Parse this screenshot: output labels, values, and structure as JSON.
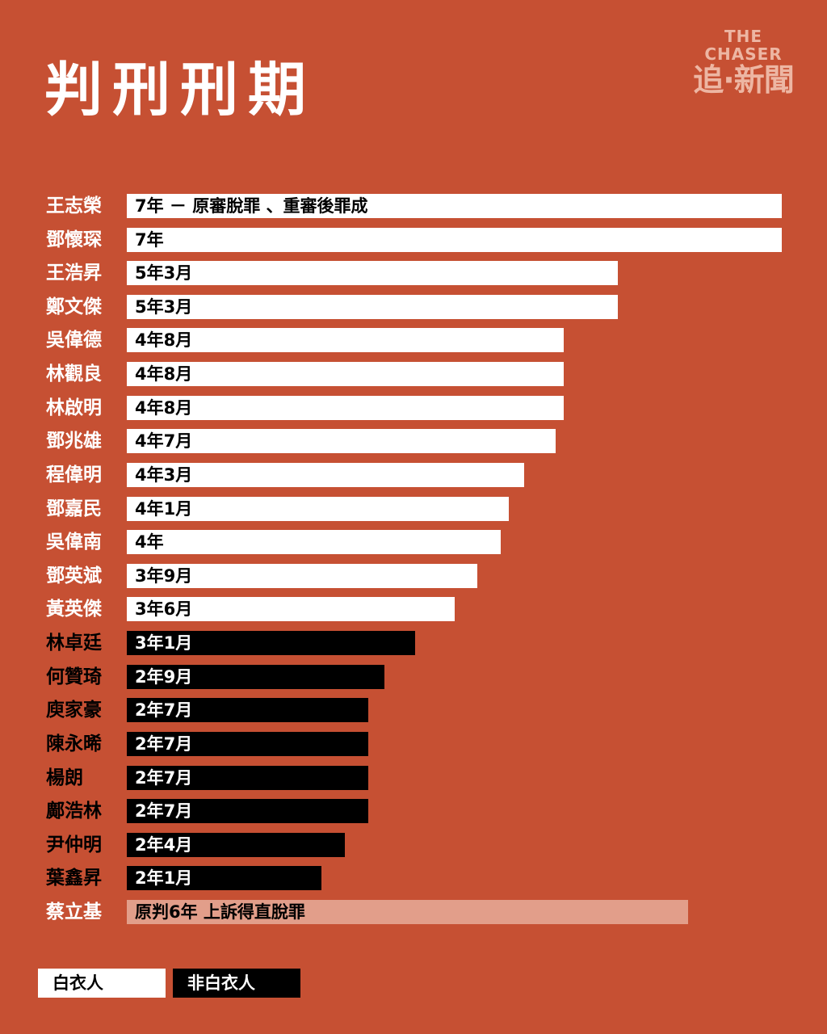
{
  "title": "判刑刑期",
  "logo": {
    "en": "THE CHASER",
    "zh": "追·新聞"
  },
  "colors": {
    "background": "#C65033",
    "white_clothed": "#FFFFFF",
    "non_white_clothed": "#000000",
    "acquitted": "#E29E8A",
    "logo": "#EDB6A3"
  },
  "legend": [
    {
      "label": "白衣人",
      "group": "white"
    },
    {
      "label": "非白衣人",
      "group": "black"
    }
  ],
  "chart_data": {
    "type": "bar",
    "orientation": "horizontal",
    "unit": "months",
    "title": "判刑刑期",
    "xlim": [
      0,
      84
    ],
    "grid": false,
    "legend_position": "bottom-left",
    "rows": [
      {
        "name": "王志榮",
        "months": 84,
        "label": "7年 － 原審脫罪 、重審後罪成",
        "group": "white"
      },
      {
        "name": "鄧懷琛",
        "months": 84,
        "label": "7年",
        "group": "white"
      },
      {
        "name": "王浩昇",
        "months": 63,
        "label": "5年3月",
        "group": "white"
      },
      {
        "name": "鄭文傑",
        "months": 63,
        "label": "5年3月",
        "group": "white"
      },
      {
        "name": "吳偉德",
        "months": 56,
        "label": "4年8月",
        "group": "white"
      },
      {
        "name": "林觀良",
        "months": 56,
        "label": "4年8月",
        "group": "white"
      },
      {
        "name": "林啟明",
        "months": 56,
        "label": "4年8月",
        "group": "white"
      },
      {
        "name": "鄧兆雄",
        "months": 55,
        "label": "4年7月",
        "group": "white"
      },
      {
        "name": "程偉明",
        "months": 51,
        "label": "4年3月",
        "group": "white"
      },
      {
        "name": "鄧嘉民",
        "months": 49,
        "label": "4年1月",
        "group": "white"
      },
      {
        "name": "吳偉南",
        "months": 48,
        "label": "4年",
        "group": "white"
      },
      {
        "name": "鄧英斌",
        "months": 45,
        "label": "3年9月",
        "group": "white"
      },
      {
        "name": "黃英傑",
        "months": 42,
        "label": "3年6月",
        "group": "white"
      },
      {
        "name": "林卓廷",
        "months": 37,
        "label": "3年1月",
        "group": "black"
      },
      {
        "name": "何贊琦",
        "months": 33,
        "label": "2年9月",
        "group": "black"
      },
      {
        "name": "庾家豪",
        "months": 31,
        "label": "2年7月",
        "group": "black"
      },
      {
        "name": "陳永晞",
        "months": 31,
        "label": "2年7月",
        "group": "black"
      },
      {
        "name": "楊朗",
        "months": 31,
        "label": "2年7月",
        "group": "black"
      },
      {
        "name": "鄺浩林",
        "months": 31,
        "label": "2年7月",
        "group": "black"
      },
      {
        "name": "尹仲明",
        "months": 28,
        "label": "2年4月",
        "group": "black"
      },
      {
        "name": "葉鑫昇",
        "months": 25,
        "label": "2年1月",
        "group": "black"
      },
      {
        "name": "蔡立基",
        "months": 72,
        "label": "原判6年 上訴得直脫罪",
        "group": "acquitted"
      }
    ]
  }
}
